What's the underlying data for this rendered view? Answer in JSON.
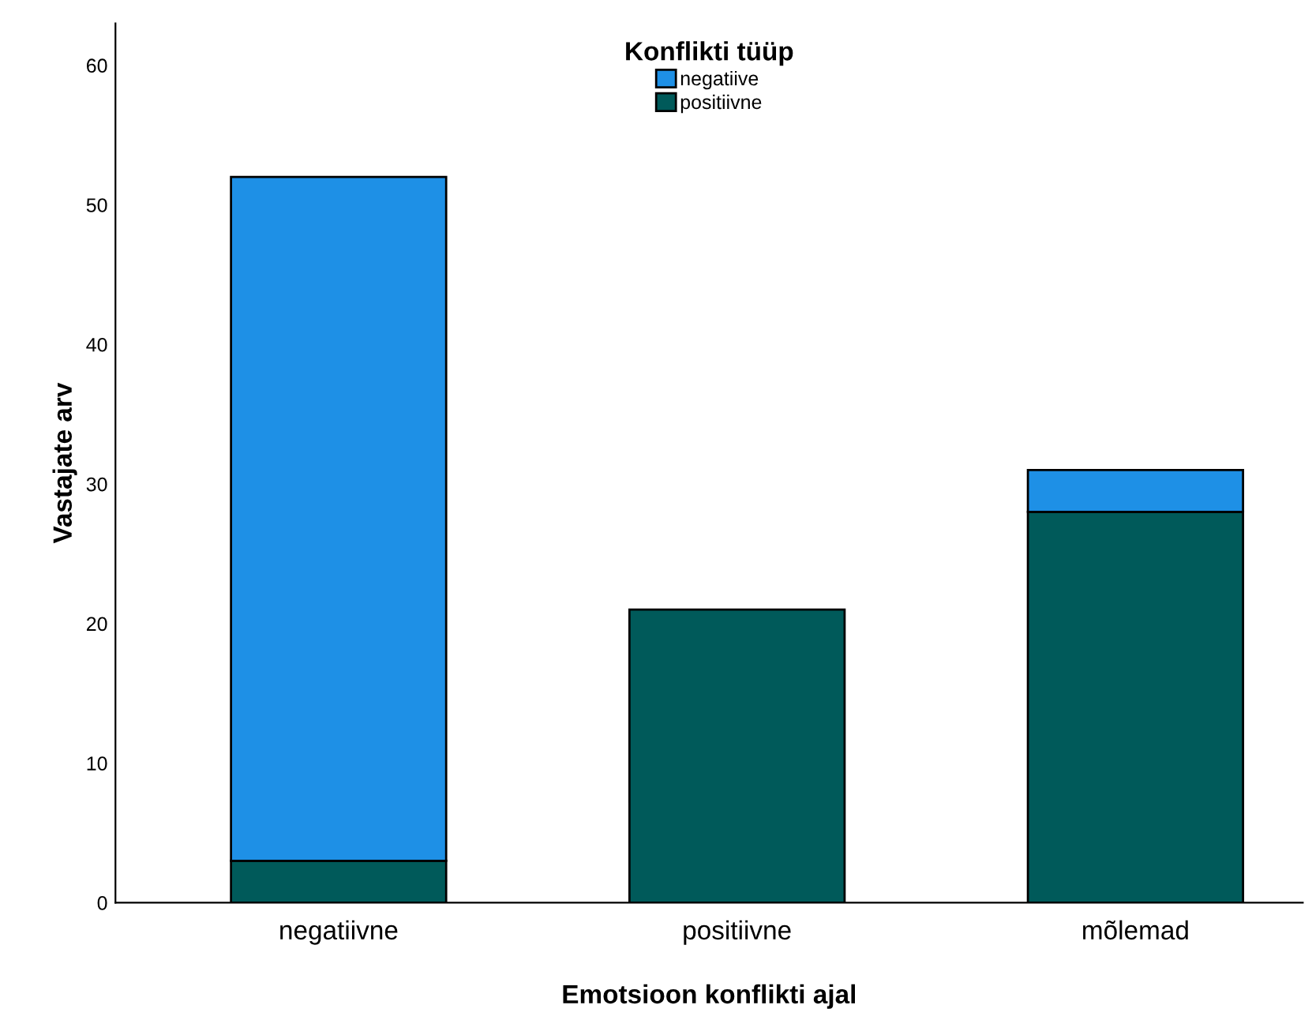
{
  "chart_data": {
    "type": "bar",
    "stacked": true,
    "xlabel": "Emotsioon konflikti ajal",
    "ylabel": "Vastajate arv",
    "legend_title": "Konflikti tüüp",
    "categories": [
      "negatiivne",
      "positiivne",
      "mõlemad"
    ],
    "series": [
      {
        "name": "positiivne",
        "color": "#005a5a",
        "values": [
          3,
          21,
          28
        ]
      },
      {
        "name": "negatiive",
        "color": "#1e90e6",
        "values": [
          49,
          null,
          3
        ]
      }
    ],
    "ylim": [
      0,
      63
    ],
    "yticks": [
      0,
      10,
      20,
      30,
      40,
      50,
      60
    ],
    "grid": false,
    "legend": "top"
  }
}
